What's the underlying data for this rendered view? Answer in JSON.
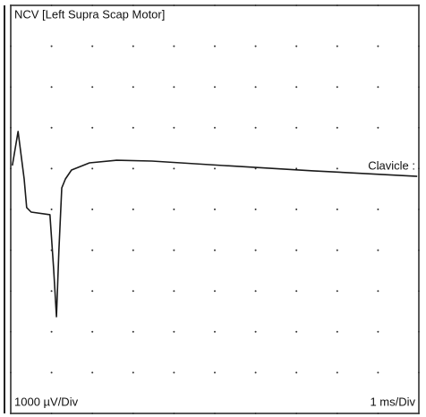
{
  "chart_data": {
    "type": "line",
    "title": "NCV [Left Supra Scap Motor]",
    "annotation": "Clavicle :",
    "y_label": "1000 µV/Div",
    "x_label": "1 ms/Div",
    "x": [
      0.04,
      0.18,
      0.33,
      0.39,
      0.5,
      0.96,
      1.05,
      1.12,
      1.18,
      1.25,
      1.34,
      1.49,
      1.93,
      2.59,
      3.46,
      5.22,
      7.41,
      9.96
    ],
    "values": [
      1075,
      1910,
      745,
      45,
      -65,
      -130,
      -1450,
      -2630,
      -1010,
      525,
      745,
      965,
      1140,
      1205,
      1185,
      1075,
      945,
      810
    ],
    "color": "#1a1a1a",
    "xlim": [
      0,
      10
    ],
    "ylim": [
      -5000,
      5000
    ],
    "xticks": [
      0,
      1,
      2,
      3,
      4,
      5,
      6,
      7,
      8,
      9,
      10
    ],
    "yticks": [
      -5000,
      -4000,
      -3000,
      -2000,
      -1000,
      0,
      1000,
      2000,
      3000,
      4000,
      5000
    ],
    "grid": true
  }
}
